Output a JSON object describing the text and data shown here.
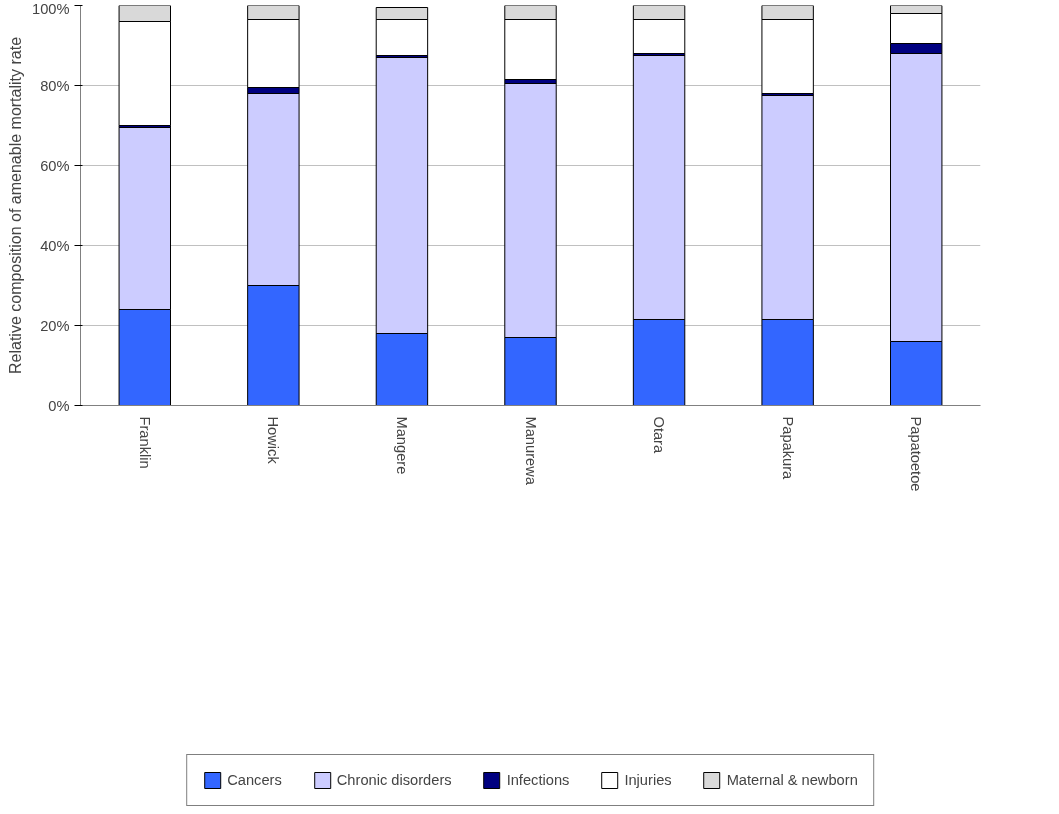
{
  "chart_data": {
    "type": "bar",
    "stacked": true,
    "ylabel": "Relative composition of amenable mortality rate",
    "categories": [
      "Franklin",
      "Howick",
      "Mangere",
      "Manurewa",
      "Otara",
      "Papakura",
      "Papatoetoe"
    ],
    "series": [
      {
        "name": "Cancers",
        "color": "#3366ff",
        "values": [
          24,
          30,
          18,
          17,
          21.5,
          21.5,
          16
        ]
      },
      {
        "name": "Chronic disorders",
        "color": "#ccccff",
        "values": [
          45.5,
          48,
          69,
          63.5,
          66,
          56,
          72
        ]
      },
      {
        "name": "Infections",
        "color": "#000080",
        "values": [
          0.5,
          1.5,
          0.5,
          1,
          0.5,
          0.5,
          2.5
        ]
      },
      {
        "name": "Injuries",
        "color": "#ffffff",
        "values": [
          26,
          17,
          9,
          15,
          8.5,
          18.5,
          7.5
        ]
      },
      {
        "name": "Maternal & newborn",
        "color": "#d9d9d9",
        "values": [
          4,
          3.5,
          3,
          3.5,
          3.5,
          3.5,
          2
        ]
      }
    ],
    "ylim": [
      0,
      100
    ],
    "yticks": [
      {
        "value": 0,
        "label": "0%"
      },
      {
        "value": 20,
        "label": "20%"
      },
      {
        "value": 40,
        "label": "40%"
      },
      {
        "value": 60,
        "label": "60%"
      },
      {
        "value": 80,
        "label": "80%"
      },
      {
        "value": 100,
        "label": "100%"
      }
    ],
    "grid": "y",
    "legend": "bottom"
  }
}
